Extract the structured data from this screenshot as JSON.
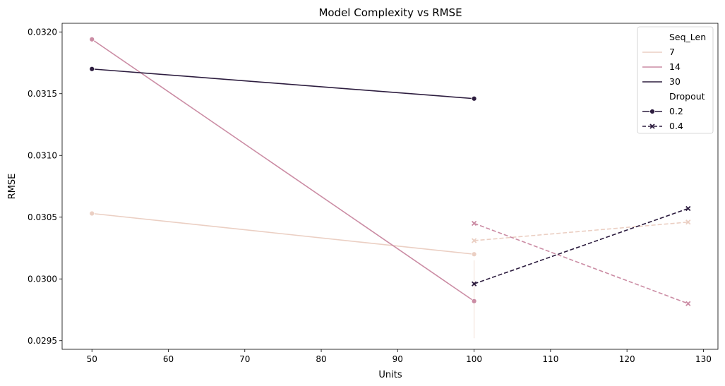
{
  "chart_data": {
    "type": "line",
    "title": "Model Complexity vs RMSE",
    "xlabel": "Units",
    "ylabel": "RMSE",
    "xlim": [
      46.1,
      131.9
    ],
    "ylim": [
      0.02943,
      0.03207
    ],
    "x_ticks": [
      50,
      60,
      70,
      80,
      90,
      100,
      110,
      120,
      130
    ],
    "y_ticks": [
      0.0295,
      0.03,
      0.0305,
      0.031,
      0.0315,
      0.032
    ],
    "y_tick_labels": [
      "0.0295",
      "0.0300",
      "0.0305",
      "0.0310",
      "0.0315",
      "0.0320"
    ],
    "grid": false,
    "legend": {
      "position": "top-right",
      "hue_title": "Seq_Len",
      "style_title": "Dropout",
      "hue_entries": [
        {
          "label": "7",
          "color": "#ebcfc3"
        },
        {
          "label": "14",
          "color": "#cb8ca4"
        },
        {
          "label": "30",
          "color": "#2d1d3f"
        }
      ],
      "style_entries": [
        {
          "label": "0.2",
          "dash": "solid",
          "marker": "circle"
        },
        {
          "label": "0.4",
          "dash": "dashed",
          "marker": "x"
        }
      ]
    },
    "series": [
      {
        "seq_len": "7",
        "dropout": "0.2",
        "color": "#ebcfc3",
        "dash": "solid",
        "marker": "circle",
        "x": [
          50,
          100
        ],
        "y": [
          0.03053,
          0.0302
        ]
      },
      {
        "seq_len": "14",
        "dropout": "0.2",
        "color": "#cb8ca4",
        "dash": "solid",
        "marker": "circle",
        "x": [
          50,
          100
        ],
        "y": [
          0.03194,
          0.02982
        ]
      },
      {
        "seq_len": "30",
        "dropout": "0.2",
        "color": "#2d1d3f",
        "dash": "solid",
        "marker": "circle",
        "x": [
          50,
          100
        ],
        "y": [
          0.0317,
          0.03146
        ]
      },
      {
        "seq_len": "7",
        "dropout": "0.4",
        "color": "#ebcfc3",
        "dash": "dashed",
        "marker": "x",
        "x": [
          100,
          128
        ],
        "y": [
          0.03031,
          0.03046
        ]
      },
      {
        "seq_len": "14",
        "dropout": "0.4",
        "color": "#cb8ca4",
        "dash": "dashed",
        "marker": "x",
        "x": [
          100,
          128
        ],
        "y": [
          0.03045,
          0.0298
        ]
      },
      {
        "seq_len": "30",
        "dropout": "0.4",
        "color": "#2d1d3f",
        "dash": "dashed",
        "marker": "x",
        "x": [
          100,
          128
        ],
        "y": [
          0.02996,
          0.03057
        ]
      }
    ],
    "error_bars": [
      {
        "x": 100,
        "y_low": 0.02952,
        "y_high": 0.03015,
        "color": "#ebcfc3"
      }
    ]
  }
}
